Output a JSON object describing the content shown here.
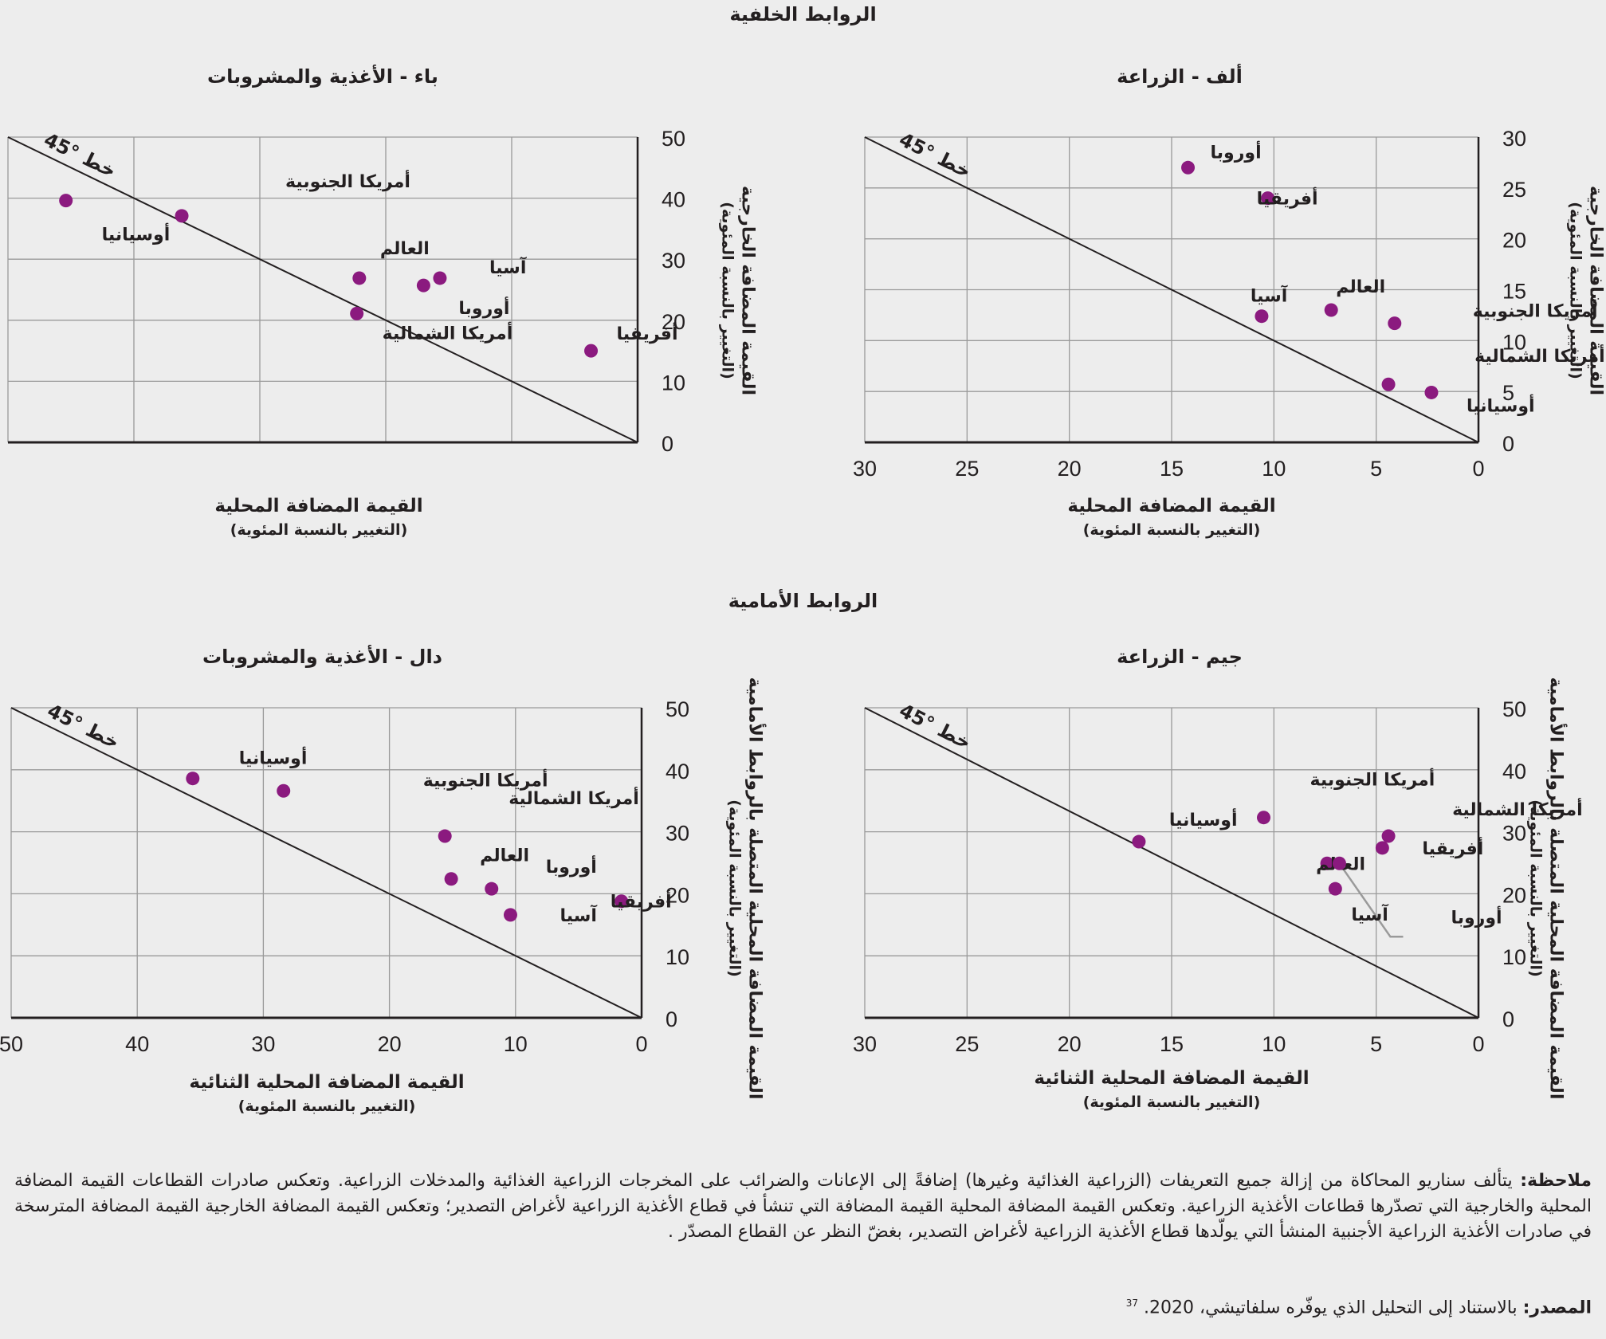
{
  "sections": {
    "backward": "الروابط الخلفية",
    "forward": "الروابط الأمامية"
  },
  "colors": {
    "dot": "#8b1a7f",
    "grid": "#9a9a9a",
    "axis": "#231f20",
    "background": "#ededed",
    "leader": "#9a9a9a"
  },
  "diagonal_label": "خط °45",
  "chart_data": [
    {
      "id": "A",
      "type": "scatter",
      "title": "ألف - الزراعة",
      "section": "backward",
      "xlabel": "القيمة المضافة المحلية",
      "xlabel_sub": "(التغيير بالنسبة المئوية)",
      "ylabel": "القيمة المضافة الخارجية",
      "ylabel_sub": "(التغيير بالنسبة المئوية)",
      "x_reversed": true,
      "xlim": [
        0,
        30
      ],
      "ylim": [
        0,
        30
      ],
      "xticks": [
        30,
        25,
        20,
        15,
        10,
        5,
        0
      ],
      "yticks": [
        30,
        25,
        20,
        15,
        10,
        5,
        0
      ],
      "show_xtick_labels": true,
      "grid": true,
      "points": [
        {
          "label": "أوروبا",
          "x": 14.2,
          "y": 27.0
        },
        {
          "label": "أفريقيا",
          "x": 10.3,
          "y": 24.0
        },
        {
          "label": "آسيا",
          "x": 10.6,
          "y": 12.4
        },
        {
          "label": "العالم",
          "x": 7.2,
          "y": 13.0
        },
        {
          "label": "أمريكا الجنوبية",
          "x": 4.1,
          "y": 11.7
        },
        {
          "label": "أمريكا الشمالية",
          "x": 4.4,
          "y": 5.7
        },
        {
          "label": "أوسيانيا",
          "x": 2.3,
          "y": 4.9
        }
      ],
      "reference_line": "45-degree"
    },
    {
      "id": "B",
      "type": "scatter",
      "title": "باء - الأغذية والمشروبات",
      "section": "backward",
      "xlabel": "القيمة المضافة المحلية",
      "xlabel_sub": "(التغيير بالنسبة المئوية)",
      "ylabel": "القيمة المضافة الخارجية",
      "ylabel_sub": "(التغيير بالنسبة المئوية)",
      "x_reversed": true,
      "xlim": [
        0,
        50
      ],
      "ylim": [
        0,
        50
      ],
      "xticks": [
        50,
        40,
        30,
        20,
        10,
        0
      ],
      "yticks": [
        50,
        40,
        30,
        20,
        10,
        0
      ],
      "show_xtick_labels": false,
      "grid": true,
      "points": [
        {
          "label": "أوسيانيا",
          "x": 45.4,
          "y": 39.6
        },
        {
          "label": "أمريكا الجنوبية",
          "x": 36.2,
          "y": 37.1
        },
        {
          "label": "العالم",
          "x": 22.1,
          "y": 26.9
        },
        {
          "label": "أمريكا الشمالية",
          "x": 22.3,
          "y": 21.1
        },
        {
          "label": "أوروبا",
          "x": 17.0,
          "y": 25.7
        },
        {
          "label": "آسيا",
          "x": 15.7,
          "y": 26.9
        },
        {
          "label": "أفريقيا",
          "x": 3.7,
          "y": 15.0
        }
      ],
      "reference_line": "45-degree"
    },
    {
      "id": "C",
      "type": "scatter",
      "title": "جيم - الزراعة",
      "section": "forward",
      "xlabel": "القيمة المضافة المحلية الثنائية",
      "xlabel_sub": "(التغيير بالنسبة المئوية)",
      "ylabel": "القيمة المضافة المحلية المتصلة بالروابط الأمامية",
      "ylabel_sub": "(التغيير بالنسبة المئوية)",
      "x_reversed": true,
      "xlim": [
        0,
        30
      ],
      "ylim": [
        0,
        50
      ],
      "xticks": [
        30,
        25,
        20,
        15,
        10,
        5,
        0
      ],
      "yticks": [
        50,
        40,
        30,
        20,
        10,
        0
      ],
      "show_xtick_labels": true,
      "grid": true,
      "points": [
        {
          "label": "أوسيانيا",
          "x": 16.6,
          "y": 28.4
        },
        {
          "label": "أمريكا الجنوبية",
          "x": 10.5,
          "y": 32.3
        },
        {
          "label": "أمريكا الشمالية",
          "x": 4.4,
          "y": 29.3
        },
        {
          "label": "أفريقيا",
          "x": 4.7,
          "y": 27.4
        },
        {
          "label": "العالم",
          "x": 7.4,
          "y": 24.9
        },
        {
          "label": "أوروبا",
          "x": 6.8,
          "y": 24.9
        },
        {
          "label": "آسيا",
          "x": 7.0,
          "y": 20.8
        }
      ],
      "reference_line": "45-degree"
    },
    {
      "id": "D",
      "type": "scatter",
      "title": "دال - الأغذية والمشروبات",
      "section": "forward",
      "xlabel": "القيمة المضافة المحلية الثنائية",
      "xlabel_sub": "(التغيير بالنسبة المئوية)",
      "ylabel": "القيمة المضافة المحلية المتصلة بالروابط الأمامية",
      "ylabel_sub": "(التغيير بالنسبة المئوية)",
      "x_reversed": true,
      "xlim": [
        0,
        50
      ],
      "ylim": [
        0,
        50
      ],
      "xticks": [
        50,
        40,
        30,
        20,
        10,
        0
      ],
      "yticks": [
        50,
        40,
        30,
        20,
        10,
        0
      ],
      "show_xtick_labels": true,
      "grid": true,
      "points": [
        {
          "label": "أوسيانيا",
          "x": 35.6,
          "y": 38.6
        },
        {
          "label": "أمريكا الجنوبية",
          "x": 28.4,
          "y": 36.6
        },
        {
          "label": "أمريكا الشمالية",
          "x": 15.6,
          "y": 29.3
        },
        {
          "label": "العالم",
          "x": 15.1,
          "y": 22.4
        },
        {
          "label": "أوروبا",
          "x": 11.9,
          "y": 20.8
        },
        {
          "label": "آسيا",
          "x": 10.4,
          "y": 16.6
        },
        {
          "label": "أفريقيا",
          "x": 1.6,
          "y": 18.8
        }
      ],
      "reference_line": "45-degree"
    }
  ],
  "footer": {
    "note_label": "ملاحظة:",
    "note_text": "يتألف سناريو المحاكاة من إزالة جميع التعريفات (الزراعية الغذائية وغيرها) إضافةً إلى الإعانات والضرائب على المخرجات الزراعية الغذائية والمدخلات الزراعية. وتعكس صادرات القطاعات القيمة المضافة  المحلية والخارجية التي تصدّرها قطاعات الأغذية الزراعية. وتعكس القيمة المضافة المحلية القيمة المضافة التي تنشأ في قطاع الأغذية الزراعية لأغراض التصدير؛ وتعكس القيمة المضافة الخارجية القيمة المضافة المترسخة في صادرات الأغذية الزراعية الأجنبية المنشأ التي يولّدها قطاع الأغذية الزراعية لأغراض التصدير، بغضّ النظر عن القطاع المصدّر .",
    "source_label": "المصدر:",
    "source_text": "بالاستناد إلى التحليل الذي يوفّره سلفاتيشي، 2020.",
    "source_ref": "37"
  }
}
